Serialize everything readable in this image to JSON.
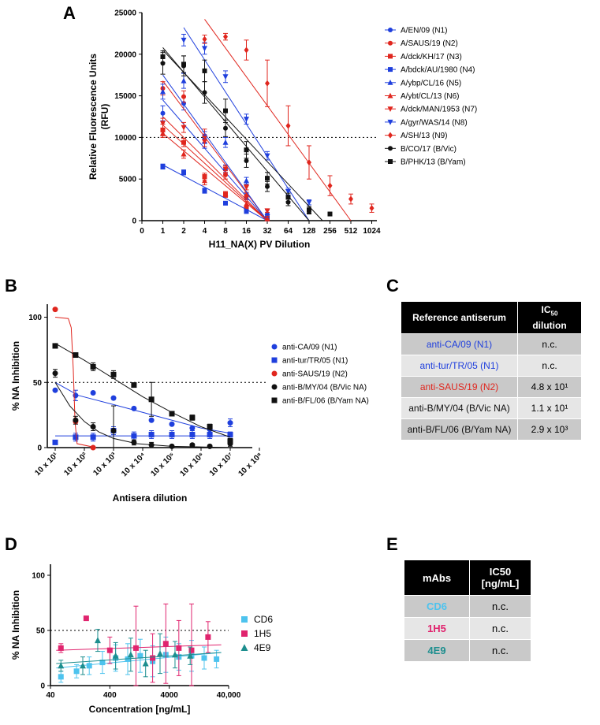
{
  "figure": {
    "panel_labels": [
      "A",
      "B",
      "C",
      "D",
      "E"
    ]
  },
  "chart_data": [
    {
      "id": "A",
      "type": "line",
      "title": "",
      "xlabel": "H11_NA(X) PV Dilution",
      "ylabel": "Relative Fluorescence Units (RFU)",
      "ylabel_lines": [
        "Relative Fluorescence Units",
        "(RFU)"
      ],
      "x_scale": "log2",
      "x_ticks": [
        "0",
        "1",
        "2",
        "4",
        "8",
        "16",
        "32",
        "64",
        "128",
        "256",
        "512",
        "1024"
      ],
      "y_ticks": [
        "0",
        "5000",
        "10000",
        "15000",
        "20000",
        "25000"
      ],
      "ylim": [
        0,
        25000
      ],
      "reference_line": 10000,
      "series": [
        {
          "name": "A/EN/09 (N1)",
          "color": "#1f3fdd",
          "marker": "circle",
          "x": [
            1,
            2,
            4,
            8,
            16,
            32
          ],
          "y": [
            12900,
            14100,
            9800,
            6200,
            2900,
            400
          ],
          "err": [
            900,
            800,
            900,
            500,
            400,
            200
          ],
          "fit": [
            [
              1,
              14500
            ],
            [
              32,
              0
            ]
          ]
        },
        {
          "name": "A/SAUS/19 (N2)",
          "color": "#e0261e",
          "marker": "circle",
          "x": [
            1,
            2,
            4,
            8,
            16,
            32
          ],
          "y": [
            15900,
            14900,
            10200,
            5500,
            3000,
            300
          ],
          "err": [
            800,
            700,
            800,
            500,
            400,
            200
          ],
          "fit": [
            [
              1,
              16800
            ],
            [
              32,
              0
            ]
          ]
        },
        {
          "name": "A/dck/KH/17 (N3)",
          "color": "#e0261e",
          "marker": "square",
          "x": [
            1,
            2,
            4,
            8,
            16,
            32
          ],
          "y": [
            10900,
            9400,
            5300,
            3100,
            1500,
            300
          ],
          "err": [
            700,
            500,
            400,
            300,
            200,
            100
          ],
          "fit": [
            [
              1,
              11500
            ],
            [
              32,
              0
            ]
          ]
        },
        {
          "name": "A/bdck/AU/1980 (N4)",
          "color": "#1f3fdd",
          "marker": "square",
          "x": [
            1,
            2,
            4,
            8,
            16,
            32
          ],
          "y": [
            6500,
            5800,
            3600,
            2100,
            1100,
            200
          ],
          "err": [
            300,
            300,
            300,
            200,
            150,
            100
          ],
          "fit": [
            [
              1,
              6700
            ],
            [
              32,
              0
            ]
          ]
        },
        {
          "name": "A/ybp/CL/16 (N5)",
          "color": "#1f3fdd",
          "marker": "triangle-up",
          "x": [
            1,
            2,
            4,
            8,
            16,
            32
          ],
          "y": [
            15500,
            16800,
            9500,
            9400,
            4800,
            1000
          ],
          "err": [
            900,
            900,
            800,
            600,
            400,
            300
          ],
          "fit": [
            [
              1,
              17500
            ],
            [
              32,
              0
            ]
          ]
        },
        {
          "name": "A/ybt/CL/13 (N6)",
          "color": "#e0261e",
          "marker": "triangle-up",
          "x": [
            1,
            2,
            4,
            8,
            16,
            32
          ],
          "y": [
            10500,
            8000,
            4800,
            3200,
            2000,
            200
          ],
          "err": [
            500,
            500,
            500,
            300,
            300,
            100
          ],
          "fit": [
            [
              1,
              10500
            ],
            [
              32,
              0
            ]
          ]
        },
        {
          "name": "A/dck/MAN/1953 (N7)",
          "color": "#e0261e",
          "marker": "triangle-down",
          "x": [
            1,
            2,
            4,
            8,
            16,
            32
          ],
          "y": [
            11700,
            11200,
            9500,
            6200,
            4000,
            1200
          ],
          "err": [
            600,
            600,
            600,
            400,
            300,
            200
          ],
          "fit": [
            [
              1,
              12500
            ],
            [
              32,
              0
            ]
          ]
        },
        {
          "name": "A/gyr/WAS/14 (N8)",
          "color": "#1f3fdd",
          "marker": "triangle-down",
          "x": [
            2,
            4,
            8,
            16,
            32,
            64,
            128
          ],
          "y": [
            21700,
            20700,
            17300,
            12200,
            7800,
            3500,
            2200
          ],
          "err": [
            700,
            700,
            700,
            600,
            500,
            400,
            300
          ],
          "fit": [
            [
              2,
              23200
            ],
            [
              128,
              0
            ]
          ]
        },
        {
          "name": "A/SH/13 (N9)",
          "color": "#e0261e",
          "marker": "diamond",
          "x": [
            4,
            8,
            16,
            32,
            64,
            128,
            256,
            512,
            1024
          ],
          "y": [
            21800,
            22100,
            20500,
            16500,
            11400,
            7000,
            4200,
            2600,
            1500
          ],
          "err": [
            500,
            400,
            1200,
            2800,
            2400,
            2000,
            1200,
            600,
            500
          ],
          "fit": [
            [
              4,
              24200
            ],
            [
              512,
              0
            ]
          ]
        },
        {
          "name": "B/CO/17 (B/Vic)",
          "color": "#111111",
          "marker": "circle",
          "x": [
            1,
            2,
            4,
            8,
            16,
            32,
            64,
            128
          ],
          "y": [
            18900,
            18600,
            15400,
            11100,
            7200,
            4100,
            2200,
            1100
          ],
          "err": [
            1300,
            1200,
            1300,
            1000,
            800,
            600,
            400,
            300
          ],
          "fit": [
            [
              1,
              20800
            ],
            [
              128,
              0
            ]
          ]
        },
        {
          "name": "B/PHK/13 (B/Yam)",
          "color": "#111111",
          "marker": "square",
          "x": [
            1,
            2,
            4,
            8,
            16,
            32,
            64,
            128,
            256
          ],
          "y": [
            19700,
            18800,
            18000,
            13200,
            8500,
            5100,
            2800,
            1300,
            800
          ],
          "err": [
            700,
            1000,
            1300,
            1400,
            1000,
            700,
            500,
            400,
            200
          ],
          "fit": [
            [
              1,
              20500
            ],
            [
              200,
              0
            ]
          ]
        }
      ]
    },
    {
      "id": "B",
      "type": "scatter",
      "title": "",
      "xlabel": "Antisera dilution",
      "ylabel": "% NA Inhibition",
      "x_scale": "log10",
      "x_tick_labels": [
        "10 x 10¹",
        "10 x 10²",
        "10 x 10³",
        "10 x 10⁴",
        "10 x 10⁵",
        "10 x 10⁶",
        "10 x 10⁷",
        "10 x 10⁸"
      ],
      "y_ticks": [
        "0",
        "50",
        "100"
      ],
      "ylim": [
        0,
        110
      ],
      "reference_line": 50,
      "series": [
        {
          "name": "anti-CA/09 (N1)",
          "color": "#1f3fdd",
          "marker": "circle",
          "x": [
            1,
            1.7,
            2.3,
            3,
            3.7,
            4.3,
            5,
            5.7,
            6.3,
            7
          ],
          "y": [
            44,
            40,
            42,
            38,
            30,
            21,
            18,
            15,
            14,
            19
          ],
          "err": [
            0,
            4,
            0,
            0,
            0,
            0,
            0,
            0,
            0,
            3
          ],
          "fit": [
            [
              1,
              50
            ],
            [
              1.8,
              40
            ],
            [
              3,
              33
            ],
            [
              4.5,
              24
            ],
            [
              6,
              15
            ],
            [
              7,
              11
            ]
          ]
        },
        {
          "name": "anti-tur/TR/05 (N1)",
          "color": "#1f3fdd",
          "marker": "square",
          "x": [
            1,
            1.7,
            2.3,
            3,
            3.7,
            4.3,
            5,
            5.7,
            6.3,
            7
          ],
          "y": [
            4,
            8,
            8,
            13,
            9,
            10,
            10,
            10,
            10,
            10
          ],
          "err": [
            0,
            3,
            3,
            3,
            3,
            3,
            3,
            3,
            3,
            2
          ],
          "fit": [
            [
              1,
              9
            ],
            [
              7,
              9
            ]
          ]
        },
        {
          "name": "anti-SAUS/19 (N2)",
          "color": "#e0261e",
          "marker": "circle",
          "x": [
            1,
            1.7,
            2.3
          ],
          "y": [
            106,
            20,
            0
          ],
          "err": [
            0,
            0,
            0
          ],
          "fit": [
            [
              1,
              100
            ],
            [
              1.45,
              99
            ],
            [
              1.55,
              92
            ],
            [
              1.62,
              60
            ],
            [
              1.68,
              20
            ],
            [
              1.75,
              3
            ],
            [
              2.4,
              0
            ]
          ]
        },
        {
          "name": "anti-B/MY/04 (B/Vic NA)",
          "color": "#111111",
          "marker": "circle",
          "x": [
            1,
            1.7,
            2.3,
            3,
            3.7,
            4.3,
            5,
            5.7,
            6.3,
            7
          ],
          "y": [
            57,
            21,
            16,
            13,
            4,
            2,
            1,
            2,
            1,
            3
          ],
          "err": [
            3,
            3,
            3,
            19,
            2,
            2,
            1,
            1,
            1,
            2
          ],
          "fit": [
            [
              1,
              50
            ],
            [
              1.5,
              32
            ],
            [
              2,
              20
            ],
            [
              2.5,
              12
            ],
            [
              3,
              7
            ],
            [
              3.8,
              3
            ],
            [
              5,
              1
            ],
            [
              7,
              0
            ]
          ]
        },
        {
          "name": "anti-B/FL/06 (B/Yam NA)",
          "color": "#111111",
          "marker": "square",
          "x": [
            1,
            1.7,
            2.3,
            3,
            3.7,
            4.3,
            5,
            5.7,
            6.3,
            7
          ],
          "y": [
            78,
            71,
            62,
            56,
            48,
            37,
            26,
            23,
            16,
            5
          ],
          "err": [
            0,
            0,
            3,
            3,
            0,
            13,
            0,
            2,
            2,
            2
          ],
          "fit": [
            [
              1,
              80
            ],
            [
              2,
              67
            ],
            [
              3,
              53
            ],
            [
              4,
              39
            ],
            [
              5,
              27
            ],
            [
              6,
              16
            ],
            [
              7,
              8
            ]
          ]
        }
      ]
    },
    {
      "id": "D",
      "type": "scatter",
      "title": "",
      "xlabel": "Concentration [ng/mL]",
      "ylabel": "% NA Inhibition",
      "x_scale": "log10",
      "x_ticks": [
        "40",
        "400",
        "4000",
        "40,000"
      ],
      "y_ticks": [
        "0",
        "50",
        "100"
      ],
      "ylim": [
        0,
        110
      ],
      "reference_line": 50,
      "series": [
        {
          "name": "CD6",
          "color": "#4dc3ee",
          "marker": "square",
          "x": [
            60,
            110,
            180,
            300,
            500,
            800,
            1300,
            2100,
            3500,
            5800,
            9500,
            15500,
            25000
          ],
          "y": [
            8,
            13,
            18,
            21,
            25,
            24,
            27,
            22,
            28,
            26,
            27,
            25,
            24
          ],
          "err": [
            5,
            6,
            8,
            10,
            12,
            14,
            15,
            14,
            16,
            12,
            14,
            10,
            8
          ],
          "fit": [
            [
              50,
              16
            ],
            [
              30000,
              30
            ]
          ]
        },
        {
          "name": "1H5",
          "color": "#e0246e",
          "marker": "square",
          "x": [
            60,
            160,
            400,
            1100,
            2100,
            3500,
            5800,
            9500,
            18000
          ],
          "y": [
            34,
            61,
            32,
            34,
            25,
            38,
            34,
            32,
            44
          ],
          "err": [
            4,
            0,
            12,
            38,
            22,
            36,
            25,
            42,
            14
          ],
          "fit": [
            [
              50,
              32
            ],
            [
              30000,
              37
            ]
          ]
        },
        {
          "name": "4E9",
          "color": "#1d8e8e",
          "marker": "triangle-up",
          "x": [
            60,
            140,
            250,
            500,
            900,
            1600,
            2800,
            5000,
            9000
          ],
          "y": [
            18,
            18,
            41,
            27,
            28,
            20,
            29,
            28,
            27
          ],
          "err": [
            5,
            8,
            10,
            12,
            15,
            12,
            18,
            12,
            8
          ],
          "fit": [
            [
              50,
              20
            ],
            [
              30000,
              30
            ]
          ]
        }
      ]
    },
    {
      "id": "C",
      "type": "table",
      "headers": [
        "Reference antiserum",
        "IC50 dilution"
      ],
      "header_ic": "IC",
      "header_ic_sub": "50",
      "header_ic_line2": "dilution",
      "rows": [
        {
          "name": "anti-CA/09 (N1)",
          "value": "n.c.",
          "color": "#1f3fdd"
        },
        {
          "name": "anti-tur/TR/05 (N1)",
          "value": "n.c.",
          "color": "#1f3fdd"
        },
        {
          "name": "anti-SAUS/19 (N2)",
          "value": "4.8 x 10¹",
          "color": "#e0261e"
        },
        {
          "name": "anti-B/MY/04 (B/Vic NA)",
          "value": "1.1 x 10¹",
          "color": "#111111"
        },
        {
          "name": "anti-B/FL/06 (B/Yam NA)",
          "value": "2.9 x 10³",
          "color": "#111111"
        }
      ]
    },
    {
      "id": "E",
      "type": "table",
      "headers": [
        "mAbs",
        "IC50 [ng/mL]"
      ],
      "header_ic_line1": "IC50",
      "header_ic_line2": "[ng/mL]",
      "rows": [
        {
          "name": "CD6",
          "value": "n.c.",
          "color": "#4dc3ee"
        },
        {
          "name": "1H5",
          "value": "n.c.",
          "color": "#e0246e"
        },
        {
          "name": "4E9",
          "value": "n.c.",
          "color": "#1d8e8e"
        }
      ]
    }
  ]
}
